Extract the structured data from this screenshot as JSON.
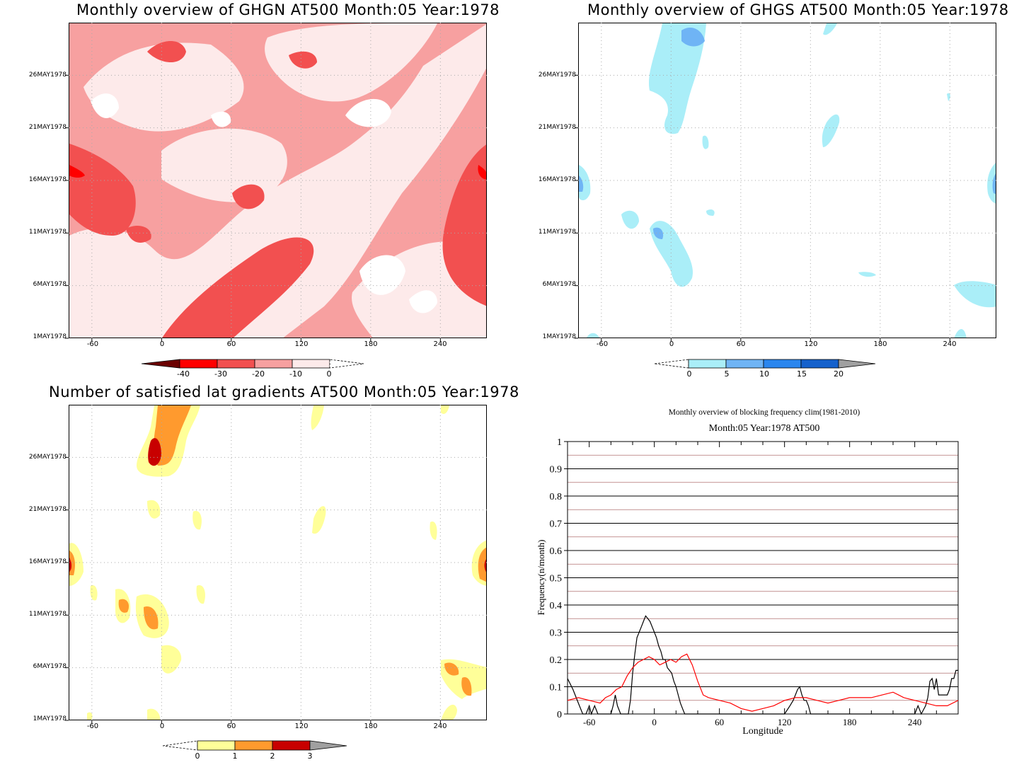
{
  "panels": {
    "ghgn": {
      "title": "Monthly overview of GHGN AT500 Month:05 Year:1978",
      "y_labels": [
        "26MAY1978",
        "21MAY1978",
        "16MAY1978",
        "11MAY1978",
        "6MAY1978",
        "1MAY1978"
      ],
      "x_labels": [
        "-60",
        "0",
        "60",
        "120",
        "180",
        "240"
      ],
      "colorbar": {
        "labels": [
          "-40",
          "-30",
          "-20",
          "-10",
          "0"
        ],
        "colors": [
          "#6b0000",
          "#ff0000",
          "#f25050",
          "#f7a0a0",
          "#fdeaea",
          "#ffffff"
        ]
      }
    },
    "ghgs": {
      "title": "Monthly overview of GHGS AT500 Month:05 Year:1978",
      "y_labels": [
        "26MAY1978",
        "21MAY1978",
        "16MAY1978",
        "11MAY1978",
        "6MAY1978",
        "1MAY1978"
      ],
      "x_labels": [
        "-60",
        "0",
        "60",
        "120",
        "180",
        "240"
      ],
      "colorbar": {
        "labels": [
          "0",
          "5",
          "10",
          "15",
          "20"
        ],
        "colors": [
          "#ffffff",
          "#aaeef8",
          "#6fb4f5",
          "#2b86ee",
          "#1561cc",
          "#a0a0a0"
        ]
      }
    },
    "gradients": {
      "title": "Number of satisfied lat gradients AT500 Month:05 Year:1978",
      "y_labels": [
        "26MAY1978",
        "21MAY1978",
        "16MAY1978",
        "11MAY1978",
        "6MAY1978",
        "1MAY1978"
      ],
      "x_labels": [
        "-60",
        "0",
        "60",
        "120",
        "180",
        "240"
      ],
      "colorbar": {
        "labels": [
          "0",
          "1",
          "2",
          "3"
        ],
        "colors": [
          "#ffffff",
          "#ffff99",
          "#ff9a2e",
          "#c80000",
          "#a0a0a0"
        ]
      }
    },
    "frequency": {
      "title1": "Monthly overview of blocking frequency clim(1981-2010)",
      "title2": "Month:05 Year:1978  AT500",
      "ylabel": "Frequency(n/month)",
      "xlabel": "Longitude"
    }
  },
  "chart_data": [
    {
      "type": "heatmap",
      "title": "Monthly overview of GHGN AT500 Month:05 Year:1978",
      "x_ticks": [
        -60,
        0,
        60,
        120,
        180,
        240
      ],
      "xlim": [
        -80,
        280
      ],
      "y_ticks": [
        "1MAY1978",
        "6MAY1978",
        "11MAY1978",
        "16MAY1978",
        "21MAY1978",
        "26MAY1978"
      ],
      "levels": [
        -40,
        -30,
        -20,
        -10,
        0
      ],
      "colors": {
        "lt_-40": "#6b0000",
        "-40_-30": "#ff0000",
        "-30_-20": "#f25050",
        "-20_-10": "#f7a0a0",
        "-10_0": "#fdeaea",
        "gt_0": "#ffffff"
      }
    },
    {
      "type": "heatmap",
      "title": "Monthly overview of GHGS AT500 Month:05 Year:1978",
      "x_ticks": [
        -60,
        0,
        60,
        120,
        180,
        240
      ],
      "xlim": [
        -80,
        280
      ],
      "y_ticks": [
        "1MAY1978",
        "6MAY1978",
        "11MAY1978",
        "16MAY1978",
        "21MAY1978",
        "26MAY1978"
      ],
      "levels": [
        0,
        5,
        10,
        15,
        20
      ],
      "colors": {
        "lt_0": "#ffffff",
        "0_5": "#aaeef8",
        "5_10": "#6fb4f5",
        "10_15": "#2b86ee",
        "15_20": "#1561cc",
        "gt_20": "#a0a0a0"
      }
    },
    {
      "type": "heatmap",
      "title": "Number of satisfied lat gradients AT500 Month:05 Year:1978",
      "x_ticks": [
        -60,
        0,
        60,
        120,
        180,
        240
      ],
      "xlim": [
        -80,
        280
      ],
      "y_ticks": [
        "1MAY1978",
        "6MAY1978",
        "11MAY1978",
        "16MAY1978",
        "21MAY1978",
        "26MAY1978"
      ],
      "levels": [
        0,
        1,
        2,
        3
      ],
      "colors": {
        "lt_0": "#ffffff",
        "0_1": "#ffff99",
        "1_2": "#ff9a2e",
        "2_3": "#c80000",
        "gt_3": "#a0a0a0"
      }
    },
    {
      "type": "line",
      "title": "Monthly overview of blocking frequency clim(1981-2010)",
      "subtitle": "Month:05 Year:1978  AT500",
      "xlabel": "Longitude",
      "ylabel": "Frequency(n/month)",
      "xlim": [
        -80,
        280
      ],
      "ylim": [
        0,
        1
      ],
      "x_ticks": [
        -60,
        0,
        60,
        120,
        180,
        240
      ],
      "y_ticks": [
        0,
        0.1,
        0.2,
        0.3,
        0.4,
        0.5,
        0.6,
        0.7,
        0.8,
        0.9,
        1
      ],
      "series": [
        {
          "color": "#000000",
          "x": [
            -80,
            -75,
            -70,
            -66,
            -63,
            -60,
            -58,
            -55,
            -52,
            -50,
            -47,
            -44,
            -42,
            -40,
            -38,
            -36,
            -34,
            -31,
            -28,
            -26,
            -24,
            -22,
            -20,
            -18,
            -16,
            -14,
            -12,
            -10,
            -8,
            -6,
            -4,
            -2,
            0,
            2,
            4,
            6,
            8,
            10,
            12,
            14,
            16,
            18,
            20,
            22,
            24,
            26,
            28,
            30,
            32,
            35,
            38,
            40,
            60,
            80,
            100,
            120,
            125,
            128,
            130,
            132,
            134,
            136,
            138,
            140,
            142,
            144,
            146,
            150,
            160,
            200,
            240,
            243,
            246,
            250,
            252,
            254,
            256,
            258,
            260,
            262,
            264,
            266,
            268,
            270,
            272,
            274,
            276,
            278,
            280
          ],
          "y": [
            0.13,
            0.09,
            0.04,
            0,
            0,
            0.03,
            0,
            0.03,
            0,
            0,
            0,
            0,
            0,
            0,
            0.03,
            0.07,
            0.03,
            0,
            0,
            0,
            0,
            0.05,
            0.15,
            0.22,
            0.28,
            0.3,
            0.32,
            0.34,
            0.36,
            0.35,
            0.34,
            0.32,
            0.3,
            0.28,
            0.25,
            0.23,
            0.2,
            0.2,
            0.17,
            0.16,
            0.15,
            0.12,
            0.1,
            0.07,
            0.04,
            0.02,
            0,
            0,
            0,
            0,
            0,
            0,
            0,
            0,
            0,
            0,
            0.03,
            0.05,
            0.07,
            0.09,
            0.1,
            0.07,
            0.05,
            0.05,
            0.03,
            0,
            0,
            0,
            0,
            0,
            0,
            0.03,
            0,
            0.03,
            0.06,
            0.12,
            0.13,
            0.09,
            0.13,
            0.07,
            0.07,
            0.07,
            0.07,
            0.07,
            0.09,
            0.13,
            0.13,
            0.16,
            0.16
          ]
        },
        {
          "color": "#ff0000",
          "x": [
            -80,
            -70,
            -60,
            -50,
            -45,
            -40,
            -35,
            -30,
            -25,
            -20,
            -15,
            -10,
            -5,
            0,
            5,
            10,
            15,
            20,
            25,
            30,
            35,
            40,
            45,
            50,
            60,
            70,
            80,
            90,
            100,
            110,
            120,
            130,
            140,
            150,
            160,
            170,
            180,
            190,
            200,
            210,
            220,
            230,
            240,
            250,
            260,
            270,
            280
          ],
          "y": [
            0.05,
            0.06,
            0.05,
            0.04,
            0.06,
            0.07,
            0.09,
            0.1,
            0.14,
            0.17,
            0.19,
            0.2,
            0.21,
            0.2,
            0.18,
            0.19,
            0.2,
            0.19,
            0.21,
            0.22,
            0.18,
            0.12,
            0.07,
            0.06,
            0.05,
            0.04,
            0.02,
            0.01,
            0.02,
            0.03,
            0.05,
            0.06,
            0.06,
            0.05,
            0.04,
            0.05,
            0.06,
            0.06,
            0.06,
            0.07,
            0.08,
            0.06,
            0.05,
            0.04,
            0.03,
            0.03,
            0.05
          ]
        }
      ]
    }
  ]
}
